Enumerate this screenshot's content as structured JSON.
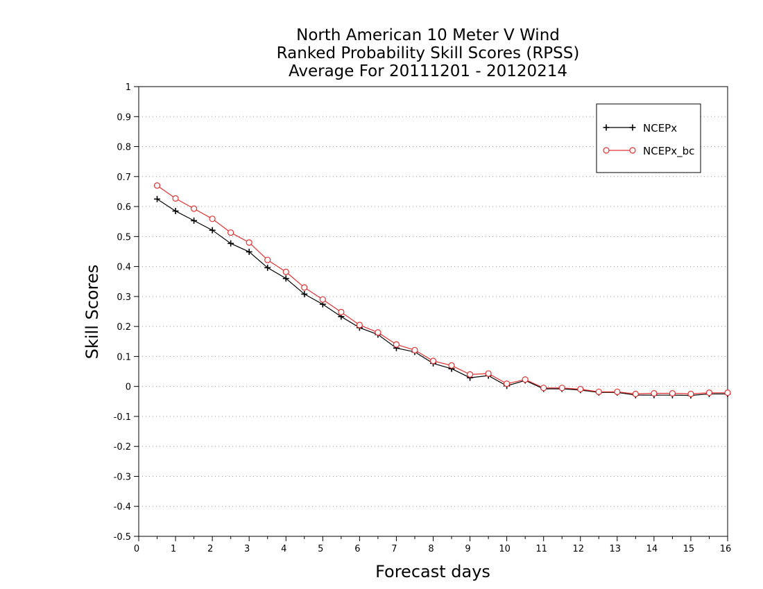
{
  "chart_data": {
    "type": "line",
    "title_lines": [
      "North American 10 Meter V Wind",
      "Ranked Probability Skill Scores (RPSS)",
      "Average For 20111201 - 20120214"
    ],
    "xlabel": "Forecast days",
    "ylabel": "Skill Scores",
    "xlim": [
      0,
      16
    ],
    "ylim": [
      -0.5,
      1
    ],
    "x_ticks": [
      0,
      1,
      2,
      3,
      4,
      5,
      6,
      7,
      8,
      9,
      10,
      11,
      12,
      13,
      14,
      15,
      16
    ],
    "y_ticks": [
      -0.5,
      -0.4,
      -0.3,
      -0.2,
      -0.1,
      0,
      0.1,
      0.2,
      0.3,
      0.4,
      0.5,
      0.6,
      0.7,
      0.8,
      0.9,
      1
    ],
    "y_tick_labels": [
      "-0.5",
      "-0.4",
      "-0.3",
      "-0.2",
      "-0.1",
      "0",
      "0.1",
      "0.2",
      "0.3",
      "0.4",
      "0.5",
      "0.6",
      "0.7",
      "0.8",
      "0.9",
      "1"
    ],
    "grid": "horizontal dotted",
    "legend_position": "top-right",
    "x": [
      0.5,
      1,
      1.5,
      2,
      2.5,
      3,
      3.5,
      4,
      4.5,
      5,
      5.5,
      6,
      6.5,
      7,
      7.5,
      8,
      8.5,
      9,
      9.5,
      10,
      10.5,
      11,
      11.5,
      12,
      12.5,
      13,
      13.5,
      14,
      14.5,
      15,
      15.5,
      16
    ],
    "series": [
      {
        "name": "NCEPx",
        "color": "#000000",
        "marker": "plus",
        "values": [
          0.625,
          0.585,
          0.553,
          0.521,
          0.477,
          0.449,
          0.396,
          0.36,
          0.308,
          0.274,
          0.233,
          0.196,
          0.173,
          0.128,
          0.115,
          0.077,
          0.059,
          0.029,
          0.036,
          0.002,
          0.02,
          -0.008,
          -0.008,
          -0.012,
          -0.02,
          -0.02,
          -0.029,
          -0.029,
          -0.029,
          -0.03,
          -0.025,
          -0.025
        ]
      },
      {
        "name": "NCEPx_bc",
        "color": "#e03030",
        "marker": "circle",
        "values": [
          0.67,
          0.627,
          0.593,
          0.559,
          0.513,
          0.48,
          0.422,
          0.382,
          0.33,
          0.29,
          0.248,
          0.205,
          0.18,
          0.14,
          0.121,
          0.085,
          0.07,
          0.04,
          0.043,
          0.009,
          0.023,
          -0.005,
          -0.005,
          -0.009,
          -0.018,
          -0.018,
          -0.025,
          -0.023,
          -0.023,
          -0.025,
          -0.021,
          -0.021
        ]
      }
    ]
  }
}
